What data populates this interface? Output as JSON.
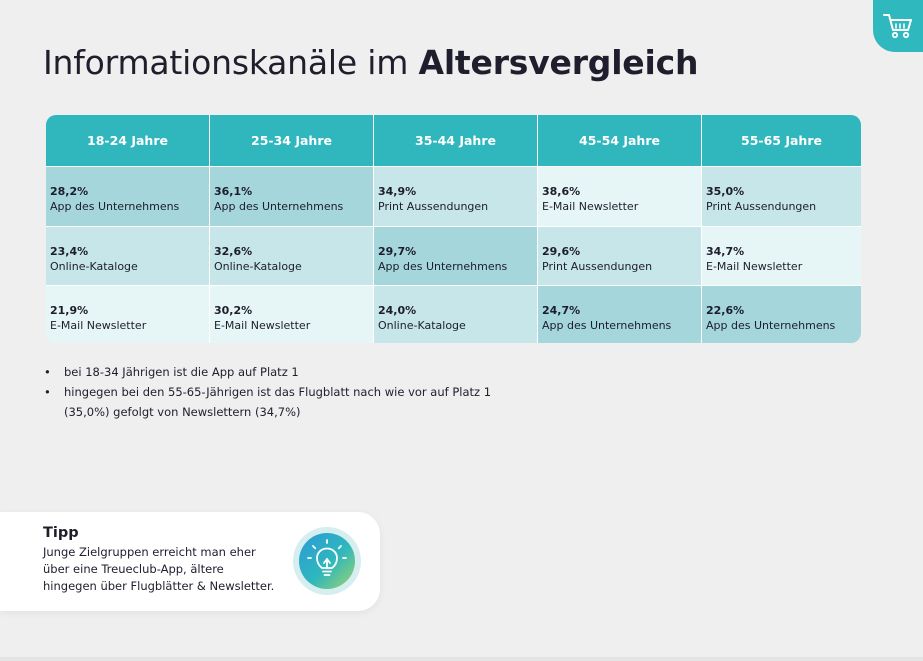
{
  "title": {
    "regular": "Informationskanäle im ",
    "bold": "Altersvergleich"
  },
  "colors": {
    "accent": "#2fb7bd",
    "text": "#1e1e2d",
    "background": "#efefef",
    "cell_light": "#e6f5f6",
    "cell_medium": "#c6e6e9",
    "cell_dark": "#a4d6dc"
  },
  "icons": {
    "cart": "shopping-cart-icon",
    "tip": "lightbulb-icon"
  },
  "table": {
    "headers": [
      "18-24 Jahre",
      "25-34 Jahre",
      "35-44 Jahre",
      "45-54 Jahre",
      "55-65 Jahre"
    ],
    "rows": [
      [
        {
          "pct": "28,2%",
          "channel": "App des Unternehmens",
          "shade": "dark"
        },
        {
          "pct": "36,1%",
          "channel": "App des Unternehmens",
          "shade": "dark"
        },
        {
          "pct": "34,9%",
          "channel": "Print Aussendungen",
          "shade": "medium"
        },
        {
          "pct": "38,6%",
          "channel": "E-Mail Newsletter",
          "shade": "light"
        },
        {
          "pct": "35,0%",
          "channel": "Print Aussendungen",
          "shade": "medium"
        }
      ],
      [
        {
          "pct": "23,4%",
          "channel": "Online-Kataloge",
          "shade": "medium"
        },
        {
          "pct": "32,6%",
          "channel": "Online-Kataloge",
          "shade": "medium"
        },
        {
          "pct": "29,7%",
          "channel": "App des Unternehmens",
          "shade": "dark"
        },
        {
          "pct": "29,6%",
          "channel": "Print Aussendungen",
          "shade": "medium"
        },
        {
          "pct": "34,7%",
          "channel": "E-Mail Newsletter",
          "shade": "light"
        }
      ],
      [
        {
          "pct": "21,9%",
          "channel": "E-Mail Newsletter",
          "shade": "light"
        },
        {
          "pct": "30,2%",
          "channel": "E-Mail Newsletter",
          "shade": "light"
        },
        {
          "pct": "24,0%",
          "channel": "Online-Kataloge",
          "shade": "medium"
        },
        {
          "pct": "24,7%",
          "channel": "App des Unternehmens",
          "shade": "dark"
        },
        {
          "pct": "22,6%",
          "channel": "App des Unternehmens",
          "shade": "dark"
        }
      ]
    ]
  },
  "bullets": [
    {
      "marker": "•",
      "lines": [
        "bei 18-34 Jährigen ist die App auf Platz 1"
      ]
    },
    {
      "marker": "•",
      "lines": [
        "hingegen bei den 55-65-Jährigen ist das Flugblatt nach wie vor auf Platz 1",
        "(35,0%)  gefolgt von Newslettern (34,7%)"
      ]
    }
  ],
  "tip": {
    "title": "Tipp",
    "lines": [
      "Junge Zielgruppen erreicht man eher",
      "über eine Treueclub-App, ältere",
      "hingegen über Flugblätter & Newsletter."
    ]
  }
}
